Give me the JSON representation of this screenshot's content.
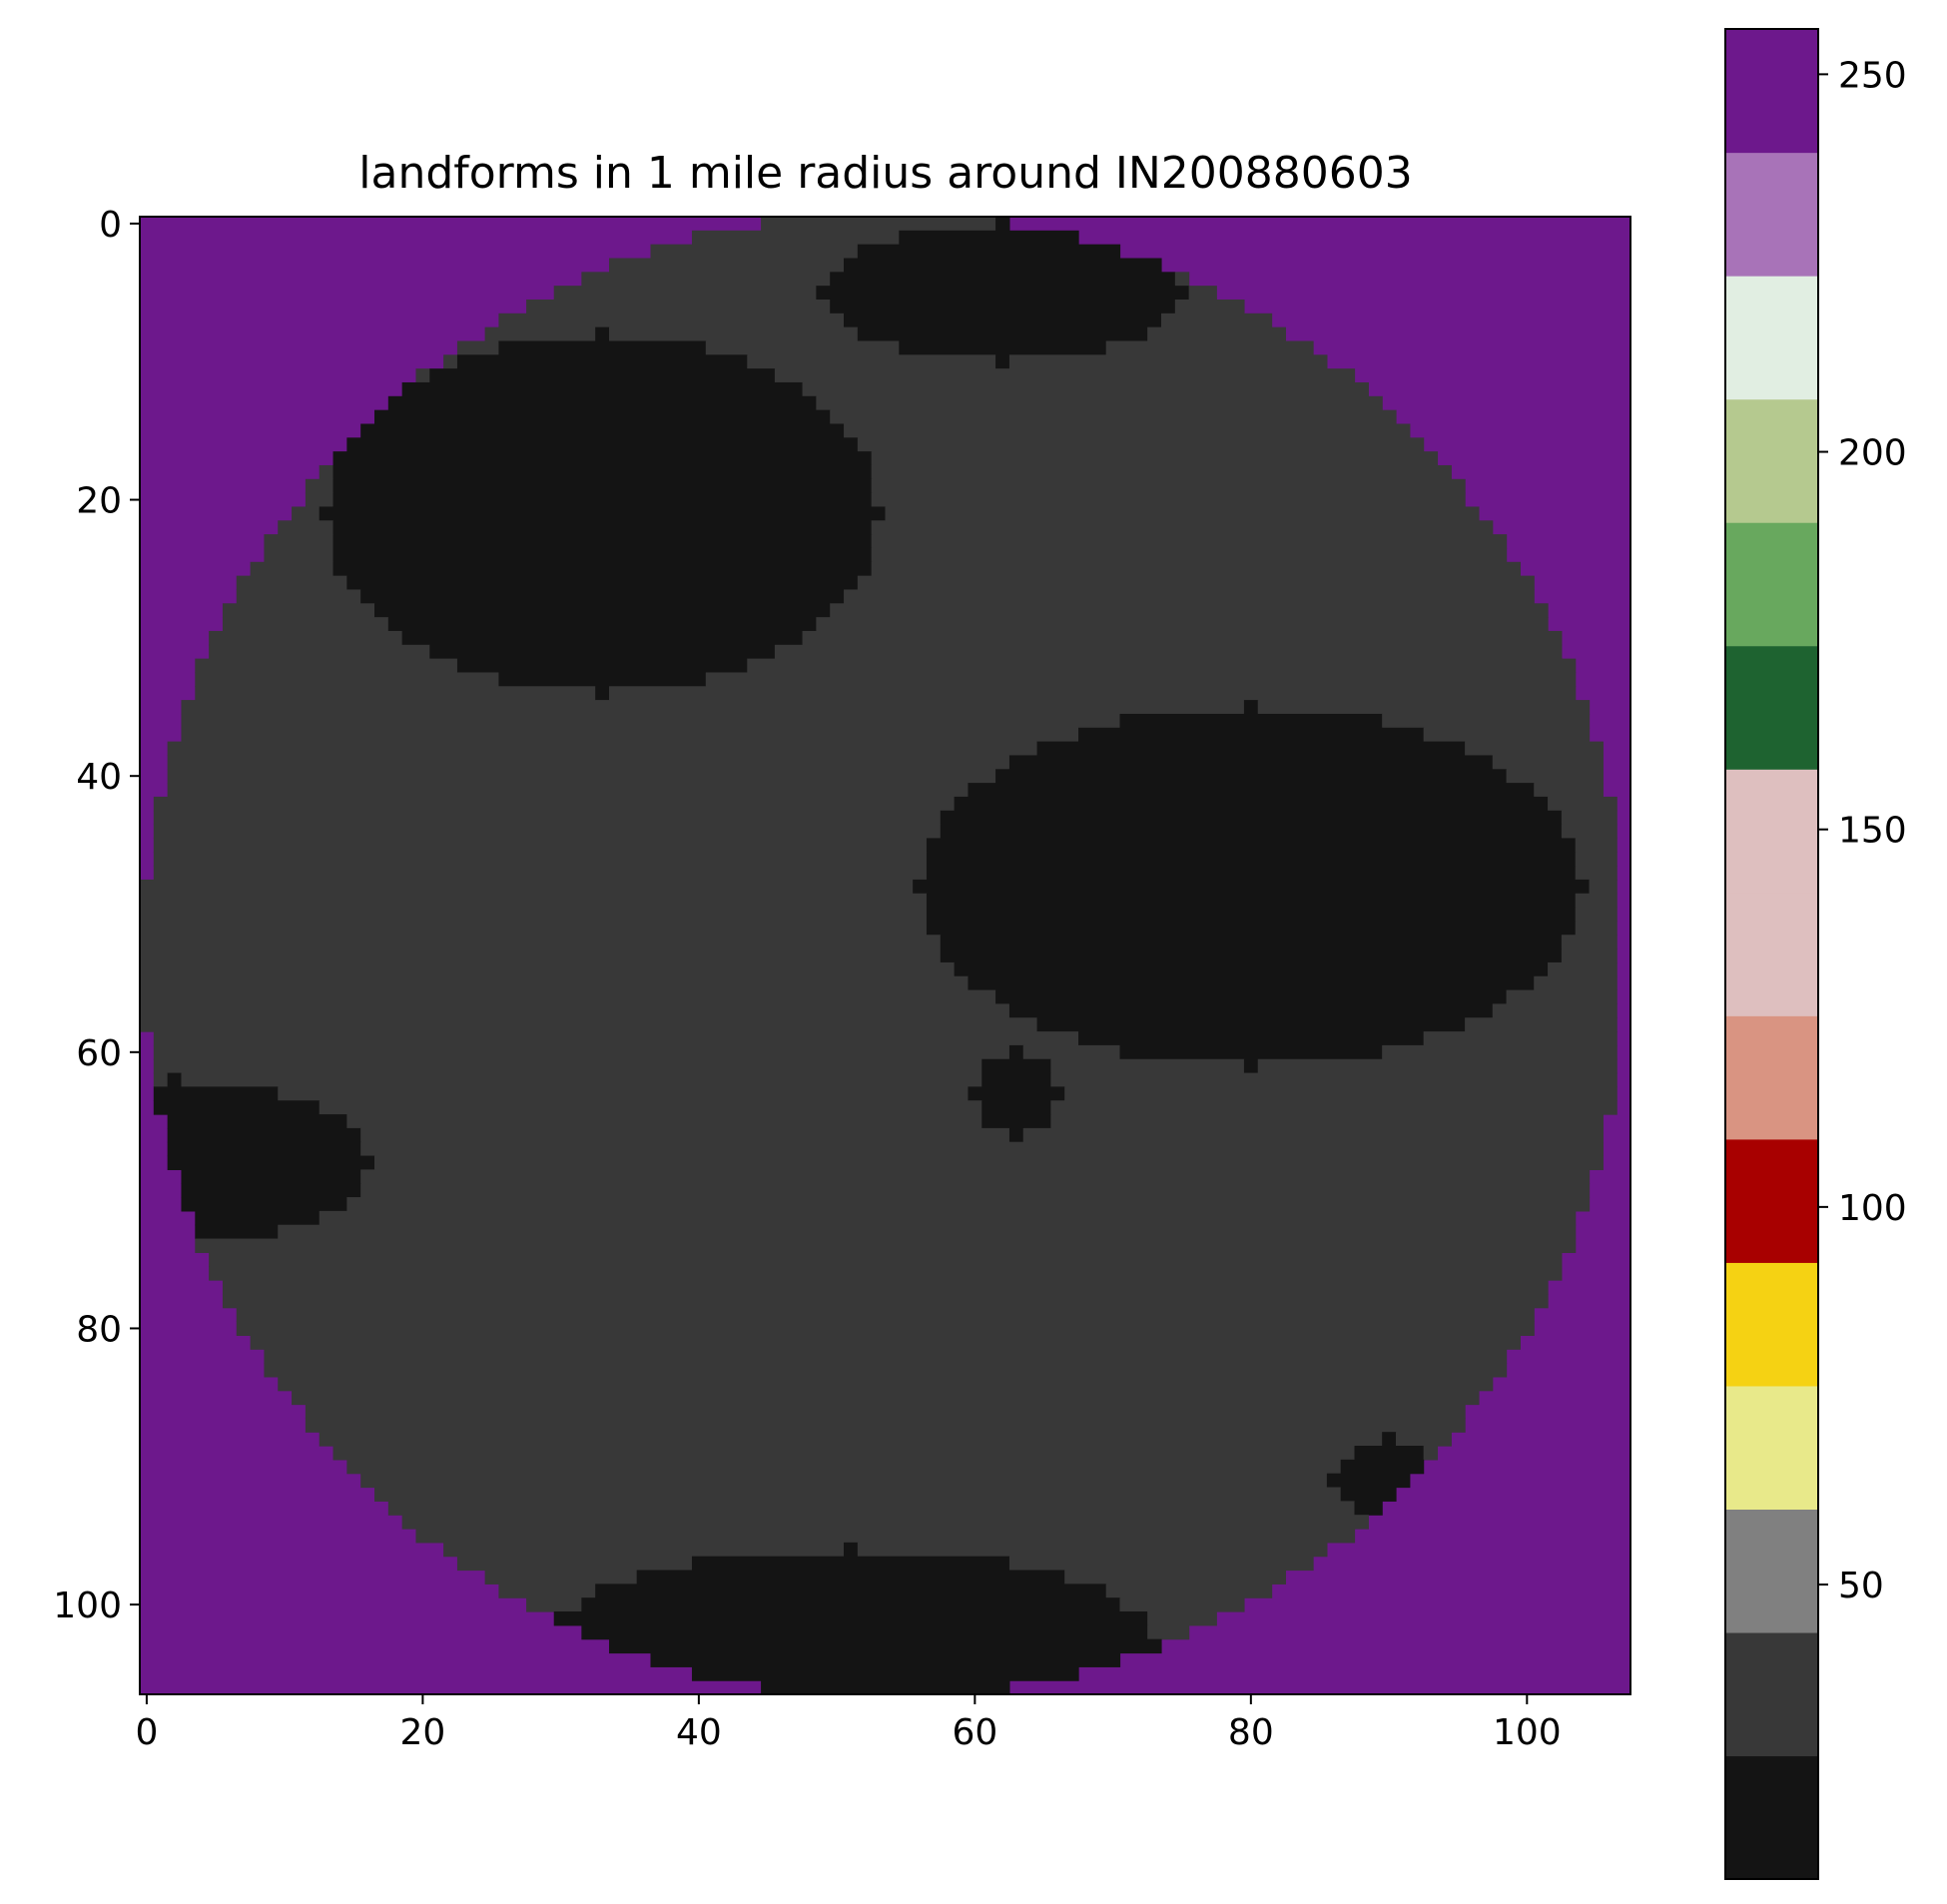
{
  "chart_data": {
    "type": "heatmap",
    "title": "landforms in 1 mile radius around IN200880603",
    "xlabel": "",
    "ylabel": "",
    "grid_size": [
      107,
      108
    ],
    "xlim": [
      -0.5,
      107.5
    ],
    "ylim": [
      106.5,
      -0.5
    ],
    "x_ticks": [
      0,
      20,
      40,
      60,
      80,
      100
    ],
    "y_ticks": [
      0,
      20,
      40,
      60,
      80,
      100
    ],
    "colorbar": {
      "range": [
        11,
        256
      ],
      "ticks": [
        50,
        100,
        150,
        200,
        250
      ],
      "colors": [
        "#141414",
        "#383838",
        "#808080",
        "#e8e98a",
        "#f5d213",
        "#a80000",
        "#d99482",
        "#debfbf",
        "#debfbf",
        "#1e6330",
        "#68a85e",
        "#b5c98f",
        "#e1eee2",
        "#a873b8",
        "#6d188c"
      ]
    },
    "outside_circle": {
      "value": 255,
      "color": "#6d188c"
    },
    "circle": {
      "center": [
        53.5,
        53
      ],
      "radius": 53.8
    },
    "classes": [
      {
        "value": 21,
        "color": "#141414"
      },
      {
        "value": 24,
        "color": "#383838"
      }
    ],
    "dark_regions_21": [
      {
        "center": [
          33,
          21
        ],
        "radius": [
          20,
          13
        ]
      },
      {
        "center": [
          80,
          48
        ],
        "radius": [
          24,
          13
        ]
      },
      {
        "center": [
          62,
          5
        ],
        "radius": [
          13,
          5
        ]
      },
      {
        "center": [
          2,
          68
        ],
        "radius": [
          14,
          6
        ]
      },
      {
        "center": [
          51,
          103
        ],
        "radius": [
          22,
          7
        ]
      },
      {
        "center": [
          90,
          91
        ],
        "radius": [
          4,
          3
        ]
      },
      {
        "center": [
          63,
          63
        ],
        "radius": [
          3,
          3
        ]
      }
    ],
    "rest_value": 24
  }
}
